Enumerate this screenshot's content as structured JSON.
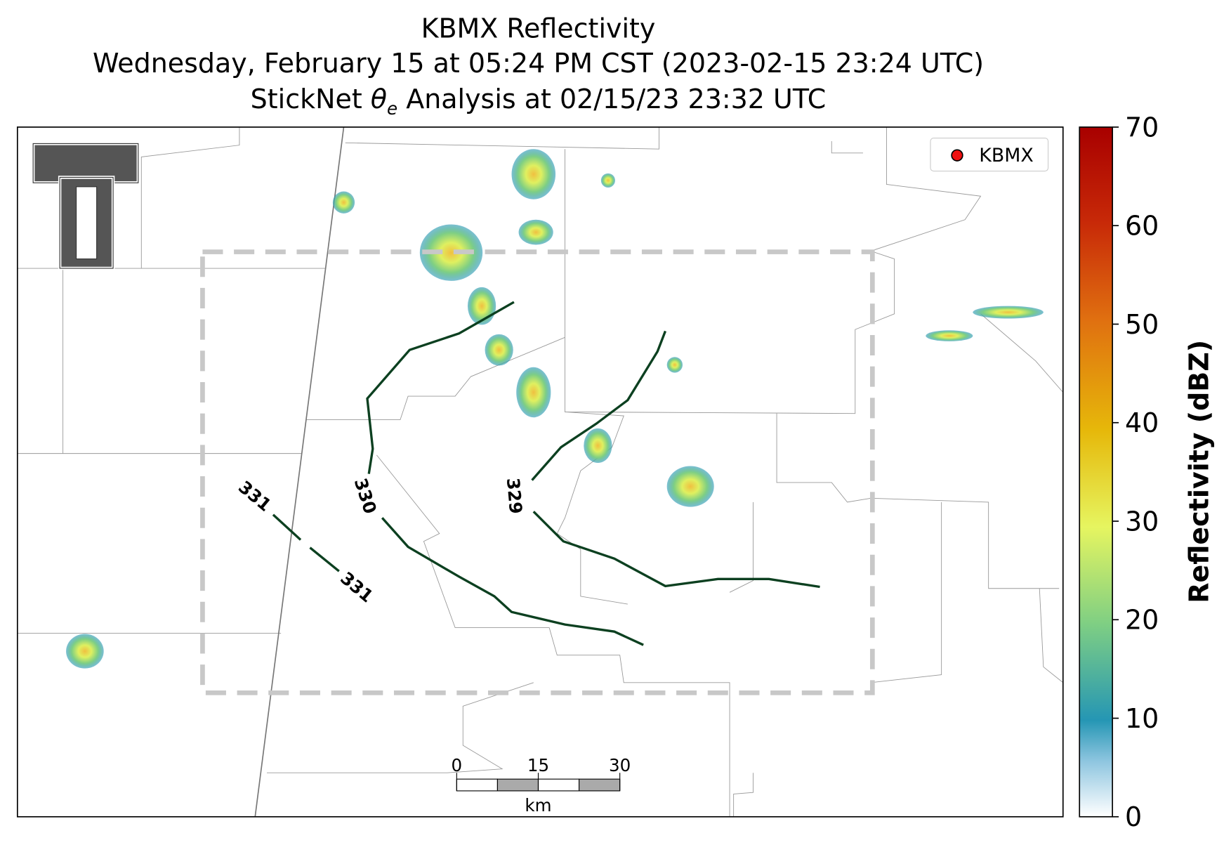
{
  "header": {
    "title_line1": "KBMX Reflectivity",
    "title_line2": "Wednesday, February 15 at 05:24 PM CST (2023-02-15 23:24 UTC)",
    "title_line3_prefix": "StickNet ",
    "title_line3_symbol": "θ",
    "title_line3_subscript": "e",
    "title_line3_suffix": " Analysis at 02/15/23 23:32 UTC"
  },
  "legend": {
    "label": "KBMX"
  },
  "colorbar": {
    "label": "Reflectivity (dBZ)",
    "range": [
      0,
      70
    ],
    "ticks": [
      0,
      10,
      20,
      30,
      40,
      50,
      60,
      70
    ]
  },
  "scale_bar": {
    "ticks": [
      0,
      15,
      30
    ],
    "unit": "km"
  },
  "contours": {
    "labels": [
      331,
      330,
      329,
      331
    ]
  }
}
